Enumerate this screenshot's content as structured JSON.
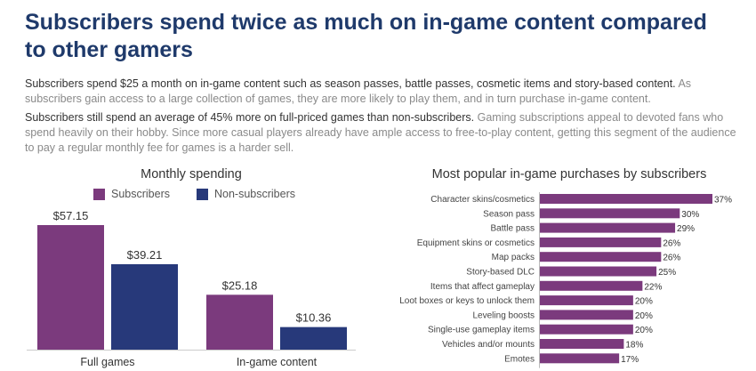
{
  "headline": "Subscribers spend twice as much on in-game content compared to other gamers",
  "paragraphs": [
    {
      "lead": "Subscribers spend $25 a month on in-game content such as season passes, battle passes, cosmetic items and story-based content.",
      "rest": "As subscribers gain access to a large collection of games, they are more likely to play them, and in turn purchase in-game content."
    },
    {
      "lead": "Subscribers still spend an average of 45% more on full-priced games than non-subscribers.",
      "rest": "Gaming subscriptions appeal to devoted fans who spend heavily on their hobby. Since more casual players already have ample access to free-to-play content, getting this segment of the audience to pay a regular monthly fee for games is a harder sell."
    }
  ],
  "colors": {
    "subscribers": "#7b3a7d",
    "non_subscribers": "#27397a",
    "headline": "#1f3a6b"
  },
  "chart_data": [
    {
      "type": "bar",
      "title": "Monthly spending",
      "categories": [
        "Full games",
        "In-game content"
      ],
      "series": [
        {
          "name": "Subscribers",
          "values": [
            57.15,
            25.18
          ],
          "labels": [
            "$57.15",
            "$25.18"
          ]
        },
        {
          "name": "Non-subscribers",
          "values": [
            39.21,
            10.36
          ],
          "labels": [
            "$39.21",
            "$10.36"
          ]
        }
      ],
      "ylim": [
        0,
        60
      ],
      "legend": "top"
    },
    {
      "type": "bar",
      "orientation": "horizontal",
      "title": "Most popular in-game purchases by subscribers",
      "categories": [
        "Character skins/cosmetics",
        "Season pass",
        "Battle pass",
        "Equipment skins or cosmetics",
        "Map packs",
        "Story-based DLC",
        "Items that affect gameplay",
        "Loot boxes or keys to unlock them",
        "Leveling boosts",
        "Single-use gameplay items",
        "Vehicles and/or mounts",
        "Emotes"
      ],
      "values": [
        37,
        30,
        29,
        26,
        26,
        25,
        22,
        20,
        20,
        20,
        18,
        17
      ],
      "labels": [
        "37%",
        "30%",
        "29%",
        "26%",
        "26%",
        "25%",
        "22%",
        "20%",
        "20%",
        "20%",
        "18%",
        "17%"
      ],
      "xlim": [
        0,
        37
      ]
    }
  ]
}
